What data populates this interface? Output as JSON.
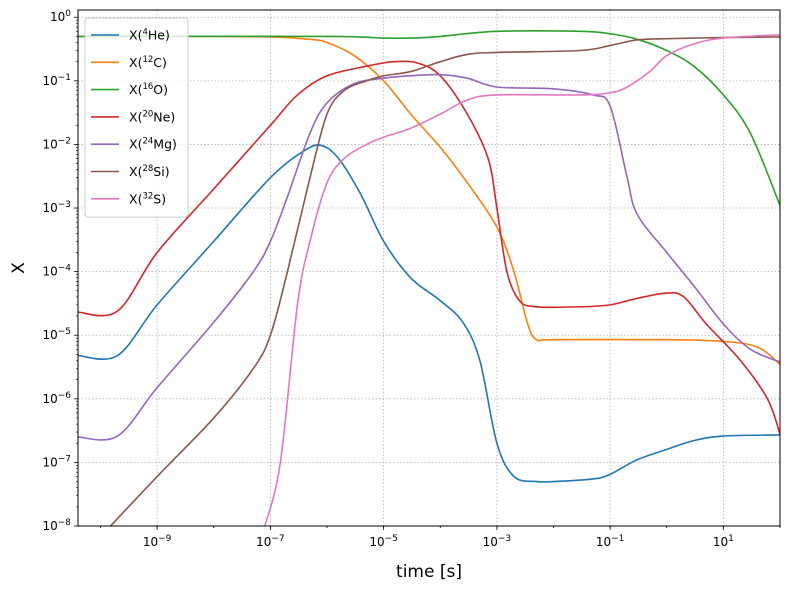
{
  "chart_data": {
    "type": "line",
    "xlabel": "time [s]",
    "ylabel": "X",
    "xscale": "log",
    "yscale": "log",
    "xlim": [
      4e-11,
      100
    ],
    "ylim": [
      1e-08,
      1.3
    ],
    "grid": true,
    "legend_position": "top-left",
    "x_ticks": [
      {
        "value": 1e-09,
        "base": "10",
        "exp": "−9"
      },
      {
        "value": 1e-07,
        "base": "10",
        "exp": "−7"
      },
      {
        "value": 1e-05,
        "base": "10",
        "exp": "−5"
      },
      {
        "value": 0.001,
        "base": "10",
        "exp": "−3"
      },
      {
        "value": 0.1,
        "base": "10",
        "exp": "−1"
      },
      {
        "value": 10,
        "base": "10",
        "exp": "1"
      }
    ],
    "y_ticks": [
      {
        "value": 1e-08,
        "base": "10",
        "exp": "−8"
      },
      {
        "value": 1e-07,
        "base": "10",
        "exp": "−7"
      },
      {
        "value": 1e-06,
        "base": "10",
        "exp": "−6"
      },
      {
        "value": 1e-05,
        "base": "10",
        "exp": "−5"
      },
      {
        "value": 0.0001,
        "base": "10",
        "exp": "−4"
      },
      {
        "value": 0.001,
        "base": "10",
        "exp": "−3"
      },
      {
        "value": 0.01,
        "base": "10",
        "exp": "−2"
      },
      {
        "value": 0.1,
        "base": "10",
        "exp": "−1"
      },
      {
        "value": 1,
        "base": "10",
        "exp": "0"
      }
    ],
    "series": [
      {
        "name": "X(4He)",
        "label_pre": "X(",
        "sup": "4",
        "label_post": "He)",
        "color": "#1f77b4",
        "points": [
          [
            4e-11,
            4.8e-06
          ],
          [
            2e-10,
            4.8e-06
          ],
          [
            1e-09,
            3e-05
          ],
          [
            1e-08,
            0.0003
          ],
          [
            1e-07,
            0.003
          ],
          [
            4e-07,
            0.008
          ],
          [
            8e-07,
            0.0096
          ],
          [
            1.6e-06,
            0.006
          ],
          [
            4e-06,
            0.0016
          ],
          [
            1e-05,
            0.0003
          ],
          [
            3e-05,
            8e-05
          ],
          [
            0.0001,
            3.5e-05
          ],
          [
            0.00025,
            1.6e-05
          ],
          [
            0.0005,
            4e-06
          ],
          [
            0.001,
            2e-07
          ],
          [
            0.002,
            6e-08
          ],
          [
            0.005,
            5e-08
          ],
          [
            0.01,
            5e-08
          ],
          [
            0.05,
            5.5e-08
          ],
          [
            0.1,
            6.5e-08
          ],
          [
            0.3,
            1.1e-07
          ],
          [
            1,
            1.6e-07
          ],
          [
            3,
            2.2e-07
          ],
          [
            10,
            2.6e-07
          ],
          [
            100,
            2.7e-07
          ]
        ]
      },
      {
        "name": "X(12C)",
        "label_pre": "X(",
        "sup": "12",
        "label_post": "C)",
        "color": "#ff7f0e",
        "points": [
          [
            4e-11,
            0.5
          ],
          [
            1e-08,
            0.5
          ],
          [
            1e-07,
            0.49
          ],
          [
            5e-07,
            0.45
          ],
          [
            1e-06,
            0.4
          ],
          [
            3e-06,
            0.25
          ],
          [
            1e-05,
            0.1
          ],
          [
            3e-05,
            0.03
          ],
          [
            0.0001,
            0.009
          ],
          [
            0.0003,
            0.0025
          ],
          [
            0.001,
            0.0005
          ],
          [
            0.002,
            0.0001
          ],
          [
            0.0035,
            1.5e-05
          ],
          [
            0.005,
            8.5e-06
          ],
          [
            0.01,
            8.5e-06
          ],
          [
            1,
            8.5e-06
          ],
          [
            10,
            8e-06
          ],
          [
            40,
            6.5e-06
          ],
          [
            100,
            3.5e-06
          ]
        ]
      },
      {
        "name": "X(16O)",
        "label_pre": "X(",
        "sup": "16",
        "label_post": "O)",
        "color": "#2ca02c",
        "points": [
          [
            4e-11,
            0.5
          ],
          [
            1e-06,
            0.5
          ],
          [
            1e-05,
            0.47
          ],
          [
            3e-05,
            0.47
          ],
          [
            0.0001,
            0.5
          ],
          [
            0.001,
            0.6
          ],
          [
            0.03,
            0.6
          ],
          [
            0.1,
            0.55
          ],
          [
            0.3,
            0.45
          ],
          [
            1,
            0.3
          ],
          [
            3,
            0.17
          ],
          [
            10,
            0.06
          ],
          [
            30,
            0.015
          ],
          [
            100,
            0.0011
          ]
        ]
      },
      {
        "name": "X(20Ne)",
        "label_pre": "X(",
        "sup": "20",
        "label_post": "Ne)",
        "color": "#d62728",
        "points": [
          [
            4e-11,
            2.3e-05
          ],
          [
            2e-10,
            2.4e-05
          ],
          [
            1e-09,
            0.0002
          ],
          [
            1e-08,
            0.002
          ],
          [
            1e-07,
            0.02
          ],
          [
            3e-07,
            0.06
          ],
          [
            1e-06,
            0.12
          ],
          [
            5e-06,
            0.17
          ],
          [
            1.5e-05,
            0.2
          ],
          [
            4e-05,
            0.19
          ],
          [
            0.0001,
            0.12
          ],
          [
            0.0003,
            0.03
          ],
          [
            0.0007,
            0.006
          ],
          [
            0.001,
            0.001
          ],
          [
            0.0015,
            0.0001
          ],
          [
            0.0025,
            3.5e-05
          ],
          [
            0.005,
            2.8e-05
          ],
          [
            0.03,
            2.8e-05
          ],
          [
            0.1,
            3e-05
          ],
          [
            0.3,
            3.8e-05
          ],
          [
            1,
            4.6e-05
          ],
          [
            2,
            4e-05
          ],
          [
            5,
            1.5e-05
          ],
          [
            20,
            4e-06
          ],
          [
            60,
            1e-06
          ],
          [
            100,
            2.8e-07
          ]
        ]
      },
      {
        "name": "X(24Mg)",
        "label_pre": "X(",
        "sup": "24",
        "label_post": "Mg)",
        "color": "#9467bd",
        "points": [
          [
            4e-11,
            2.5e-07
          ],
          [
            2e-10,
            2.6e-07
          ],
          [
            1e-09,
            1.5e-06
          ],
          [
            1e-08,
            1.6e-05
          ],
          [
            5e-08,
            0.0001
          ],
          [
            1e-07,
            0.0003
          ],
          [
            2e-07,
            0.0015
          ],
          [
            5e-07,
            0.015
          ],
          [
            1e-06,
            0.045
          ],
          [
            3e-06,
            0.09
          ],
          [
            1e-05,
            0.11
          ],
          [
            3e-05,
            0.12
          ],
          [
            0.0001,
            0.125
          ],
          [
            0.0003,
            0.11
          ],
          [
            0.001,
            0.08
          ],
          [
            0.01,
            0.075
          ],
          [
            0.05,
            0.06
          ],
          [
            0.1,
            0.04
          ],
          [
            0.2,
            0.003
          ],
          [
            0.3,
            0.0008
          ],
          [
            1,
            0.0002
          ],
          [
            3,
            6e-05
          ],
          [
            10,
            1.5e-05
          ],
          [
            30,
            6e-06
          ],
          [
            100,
            3.8e-06
          ]
        ]
      },
      {
        "name": "X(28Si)",
        "label_pre": "X(",
        "sup": "28",
        "label_post": "Si)",
        "color": "#8c564b",
        "points": [
          [
            1.5e-10,
            1e-08
          ],
          [
            1e-09,
            6e-08
          ],
          [
            1e-08,
            5e-07
          ],
          [
            5e-08,
            3e-06
          ],
          [
            1e-07,
            1e-05
          ],
          [
            2e-07,
            0.0001
          ],
          [
            5e-07,
            0.003
          ],
          [
            1e-06,
            0.03
          ],
          [
            2e-06,
            0.07
          ],
          [
            5e-06,
            0.1
          ],
          [
            1e-05,
            0.12
          ],
          [
            3e-05,
            0.14
          ],
          [
            0.0001,
            0.2
          ],
          [
            0.0003,
            0.26
          ],
          [
            0.001,
            0.28
          ],
          [
            0.03,
            0.3
          ],
          [
            0.1,
            0.36
          ],
          [
            0.3,
            0.44
          ],
          [
            1,
            0.46
          ],
          [
            10,
            0.48
          ],
          [
            100,
            0.49
          ]
        ]
      },
      {
        "name": "X(32S)",
        "label_pre": "X(",
        "sup": "32",
        "label_post": "S)",
        "color": "#e377c2",
        "points": [
          [
            8e-08,
            1e-08
          ],
          [
            1.5e-07,
            1e-07
          ],
          [
            3e-07,
            3e-05
          ],
          [
            5e-07,
            0.0003
          ],
          [
            1e-06,
            0.0025
          ],
          [
            2e-06,
            0.006
          ],
          [
            5e-06,
            0.01
          ],
          [
            1e-05,
            0.013
          ],
          [
            3e-05,
            0.018
          ],
          [
            0.0001,
            0.03
          ],
          [
            0.0003,
            0.05
          ],
          [
            0.001,
            0.06
          ],
          [
            0.03,
            0.06
          ],
          [
            0.1,
            0.065
          ],
          [
            0.2,
            0.08
          ],
          [
            0.5,
            0.14
          ],
          [
            1,
            0.25
          ],
          [
            3,
            0.38
          ],
          [
            10,
            0.47
          ],
          [
            100,
            0.53
          ]
        ]
      }
    ]
  }
}
